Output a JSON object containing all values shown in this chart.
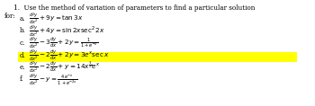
{
  "title_line1": "1.  Use the method of variation of parameters to find a particular solution",
  "title_line2": "for:",
  "items": [
    {
      "label": "a.",
      "eq": "$\\frac{d^2y}{dx^2} + 9y = \\tan 3x$",
      "highlight": false
    },
    {
      "label": "b.",
      "eq": "$\\frac{d^2y}{dx^2} + 4y = \\sin 2x\\sec^2 2x$",
      "highlight": false
    },
    {
      "label": "c.",
      "eq": "$\\frac{d^2y}{dx^2} - 3\\frac{dy}{dx} + 2y = \\frac{1}{1+e^{-x}}$",
      "highlight": false
    },
    {
      "label": "d.",
      "eq": "$\\frac{d^2y}{dx^2} - 2\\frac{dy}{dx} + 2y = 3e^x\\sec x$",
      "highlight": true
    },
    {
      "label": "e.",
      "eq": "$\\frac{d^2y}{dx^2} - 2\\frac{dy}{dx} + y = 14x^{\\frac{3}{2}}e^x$",
      "highlight": false
    },
    {
      "label": "f.",
      "eq": "$\\frac{d^2y}{dx^2} - y = \\frac{4e^{-x}}{1+e^{-2x}}$",
      "highlight": false
    }
  ],
  "highlight_color": "#FFFF00",
  "text_color": "#000000",
  "bg_color": "#FFFFFF",
  "font_size": 5.2,
  "title_font_size": 5.2
}
